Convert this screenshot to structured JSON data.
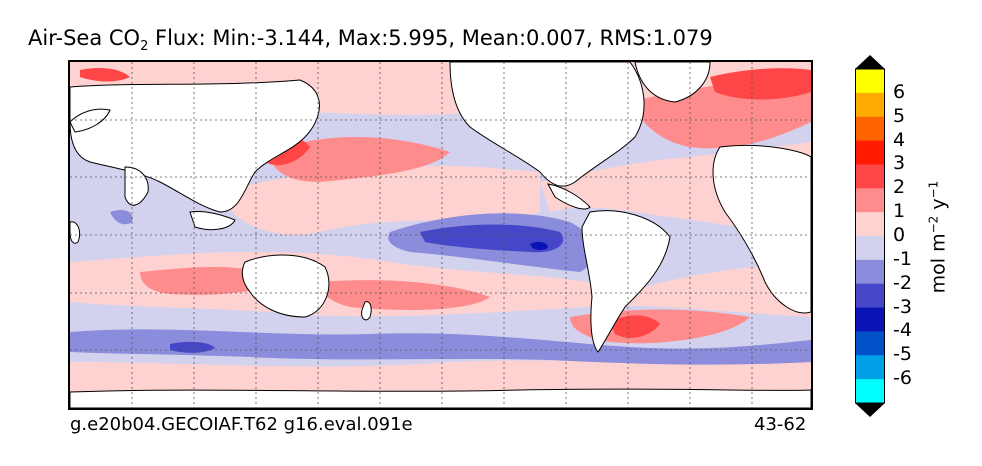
{
  "chart_data": {
    "type": "heatmap",
    "title_main": "Air-Sea CO",
    "title_sub": "2",
    "title_rest": " Flux: Min:-3.144, Max:5.995, Mean:0.007, RMS:1.079",
    "stats": {
      "min": -3.144,
      "max": 5.995,
      "mean": 0.007,
      "rms": 1.079
    },
    "footer_left": "g.e20b04.GECOIAF.T62 g16.eval.091e",
    "footer_right": "43-62",
    "colorbar": {
      "units_parts": [
        "mol m",
        "−2",
        " y",
        "−1"
      ],
      "ticks": [
        "6",
        "5",
        "4",
        "3",
        "2",
        "1",
        "0",
        "-1",
        "-2",
        "-3",
        "-4",
        "-5",
        "-6"
      ],
      "levels": [
        6,
        5,
        4,
        3,
        2,
        1,
        0,
        -1,
        -2,
        -3,
        -4,
        -5,
        -6
      ],
      "colors_top_to_bottom": [
        "#ffff00",
        "#ffaa00",
        "#ff6400",
        "#ff1a00",
        "#ff4646",
        "#ff8c8c",
        "#ffd2d2",
        "#d2d2ee",
        "#8c8cdc",
        "#4646c8",
        "#0a14b4",
        "#0050c8",
        "#00a0e6",
        "#00ffff"
      ],
      "over_color": "#000000",
      "under_color": "#000000",
      "extend": "both"
    },
    "grid": true,
    "grid_style": "dashed",
    "land_color": "#ffffff"
  }
}
